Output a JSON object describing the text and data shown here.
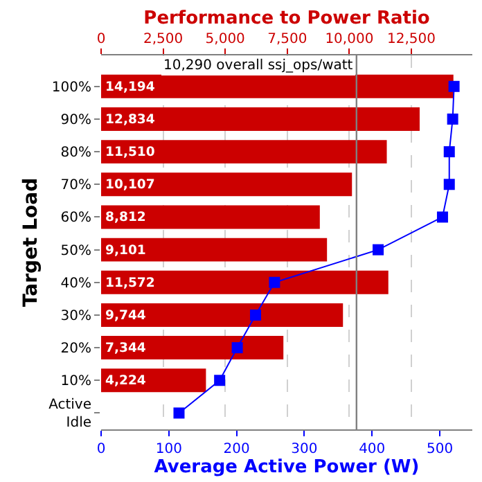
{
  "chart_data": {
    "type": "bar",
    "orientation": "horizontal",
    "categories": [
      "100%",
      "90%",
      "80%",
      "70%",
      "60%",
      "50%",
      "40%",
      "30%",
      "20%",
      "10%",
      "Active\nIdle"
    ],
    "series": [
      {
        "axis": "x2",
        "color": "#cc0000",
        "values": [
          14194,
          12834,
          11510,
          10107,
          8812,
          9101,
          11572,
          9744,
          7344,
          4224,
          null
        ],
        "value_labels": [
          "14,194",
          "12,834",
          "11,510",
          "10,107",
          "8,812",
          "9,101",
          "11,572",
          "9,744",
          "7,344",
          "4,224",
          null
        ]
      },
      {
        "type": "line",
        "color": "#0000ff",
        "marker": "square",
        "line_style": "solid",
        "values": [
          521,
          519,
          514,
          514,
          504,
          409,
          256,
          228,
          201,
          175,
          115
        ]
      }
    ],
    "x2label": "Performance to Power Ratio",
    "x2lim": [
      0,
      14955
    ],
    "x2ticks": [
      {
        "value": 0,
        "label": "0"
      },
      {
        "value": 2500,
        "label": "2,500"
      },
      {
        "value": 5000,
        "label": "5,000"
      },
      {
        "value": 7500,
        "label": "7,500"
      },
      {
        "value": 10000,
        "label": "10,000"
      },
      {
        "value": 12500,
        "label": "12,500"
      }
    ],
    "xlabel": "Average Active Power (W)",
    "xlim": [
      0,
      548
    ],
    "xticks": [
      0,
      100,
      200,
      300,
      400,
      500
    ],
    "ylabel": "Target Load",
    "ref_lines": [
      {
        "axis": "x2",
        "value": 10290,
        "label": "10,290 overall ssj_ops/watt",
        "color": "#808080"
      }
    ],
    "grid": "x"
  }
}
